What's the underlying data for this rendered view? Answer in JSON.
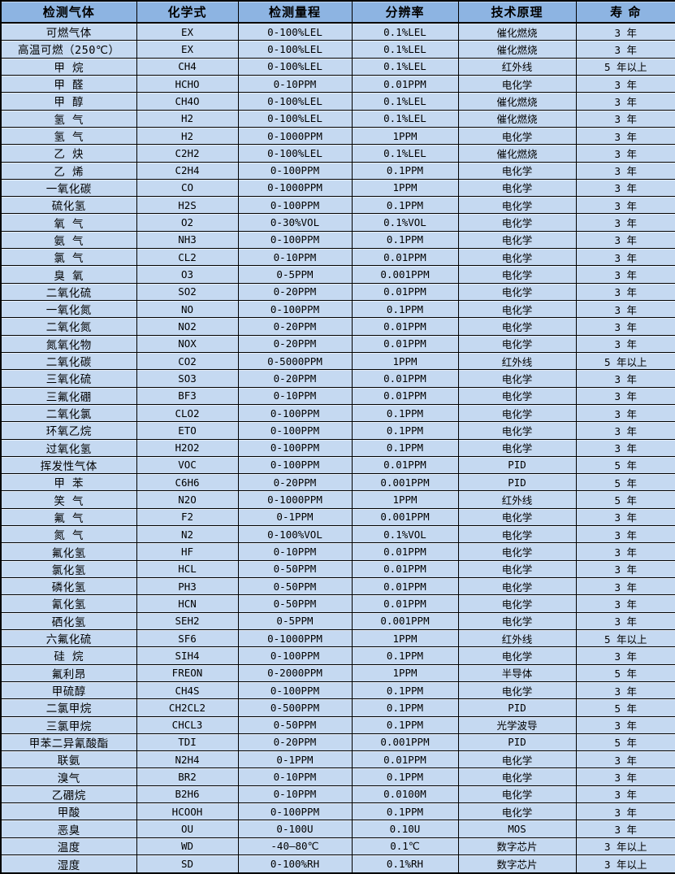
{
  "colors": {
    "header_bg": "#8DB4E2",
    "row_bg": "#C5D9F1",
    "border": "#000000",
    "text": "#000000"
  },
  "table": {
    "columns": [
      "检测气体",
      "化学式",
      "检测量程",
      "分辨率",
      "技术原理",
      "寿 命"
    ],
    "rows": [
      [
        "可燃气体",
        "EX",
        "0-100%LEL",
        "0.1%LEL",
        "催化燃烧",
        "3 年"
      ],
      [
        "高温可燃（250℃）",
        "EX",
        "0-100%LEL",
        "0.1%LEL",
        "催化燃烧",
        "3 年"
      ],
      [
        "甲 烷",
        "CH4",
        "0-100%LEL",
        "0.1%LEL",
        "红外线",
        "5 年以上"
      ],
      [
        "甲 醛",
        "HCHO",
        "0-10PPM",
        "0.01PPM",
        "电化学",
        "3 年"
      ],
      [
        "甲 醇",
        "CH4O",
        "0-100%LEL",
        "0.1%LEL",
        "催化燃烧",
        "3 年"
      ],
      [
        "氢 气",
        "H2",
        "0-100%LEL",
        "0.1%LEL",
        "催化燃烧",
        "3 年"
      ],
      [
        "氢 气",
        "H2",
        "0-1000PPM",
        "1PPM",
        "电化学",
        "3 年"
      ],
      [
        "乙 炔",
        "C2H2",
        "0-100%LEL",
        "0.1%LEL",
        "催化燃烧",
        "3 年"
      ],
      [
        "乙 烯",
        "C2H4",
        "0-100PPM",
        "0.1PPM",
        "电化学",
        "3 年"
      ],
      [
        "一氧化碳",
        "CO",
        "0-1000PPM",
        "1PPM",
        "电化学",
        "3 年"
      ],
      [
        "硫化氢",
        "H2S",
        "0-100PPM",
        "0.1PPM",
        "电化学",
        "3 年"
      ],
      [
        "氧 气",
        "O2",
        "0-30%VOL",
        "0.1%VOL",
        "电化学",
        "3 年"
      ],
      [
        "氨 气",
        "NH3",
        "0-100PPM",
        "0.1PPM",
        "电化学",
        "3 年"
      ],
      [
        "氯 气",
        "CL2",
        "0-10PPM",
        "0.01PPM",
        "电化学",
        "3 年"
      ],
      [
        "臭 氧",
        "O3",
        "0-5PPM",
        "0.001PPM",
        "电化学",
        "3 年"
      ],
      [
        "二氧化硫",
        "SO2",
        "0-20PPM",
        "0.01PPM",
        "电化学",
        "3 年"
      ],
      [
        "一氧化氮",
        "NO",
        "0-100PPM",
        "0.1PPM",
        "电化学",
        "3 年"
      ],
      [
        "二氧化氮",
        "NO2",
        "0-20PPM",
        "0.01PPM",
        "电化学",
        "3 年"
      ],
      [
        "氮氧化物",
        "NOX",
        "0-20PPM",
        "0.01PPM",
        "电化学",
        "3 年"
      ],
      [
        "二氧化碳",
        "CO2",
        "0-5000PPM",
        "1PPM",
        "红外线",
        "5 年以上"
      ],
      [
        "三氧化硫",
        "SO3",
        "0-20PPM",
        "0.01PPM",
        "电化学",
        "3 年"
      ],
      [
        "三氟化硼",
        "BF3",
        "0-10PPM",
        "0.01PPM",
        "电化学",
        "3 年"
      ],
      [
        "二氧化氯",
        "CLO2",
        "0-100PPM",
        "0.1PPM",
        "电化学",
        "3 年"
      ],
      [
        "环氧乙烷",
        "ETO",
        "0-100PPM",
        "0.1PPM",
        "电化学",
        "3 年"
      ],
      [
        "过氧化氢",
        "H2O2",
        "0-100PPM",
        "0.1PPM",
        "电化学",
        "3 年"
      ],
      [
        "挥发性气体",
        "VOC",
        "0-100PPM",
        "0.01PPM",
        "PID",
        "5 年"
      ],
      [
        "甲 苯",
        "C6H6",
        "0-20PPM",
        "0.001PPM",
        "PID",
        "5 年"
      ],
      [
        "笑 气",
        "N2O",
        "0-1000PPM",
        "1PPM",
        "红外线",
        "5 年"
      ],
      [
        "氟 气",
        "F2",
        "0-1PPM",
        "0.001PPM",
        "电化学",
        "3 年"
      ],
      [
        "氮 气",
        "N2",
        "0-100%VOL",
        "0.1%VOL",
        "电化学",
        "3 年"
      ],
      [
        "氟化氢",
        "HF",
        "0-10PPM",
        "0.01PPM",
        "电化学",
        "3 年"
      ],
      [
        "氯化氢",
        "HCL",
        "0-50PPM",
        "0.01PPM",
        "电化学",
        "3 年"
      ],
      [
        "磷化氢",
        "PH3",
        "0-50PPM",
        "0.01PPM",
        "电化学",
        "3 年"
      ],
      [
        "氰化氢",
        "HCN",
        "0-50PPM",
        "0.01PPM",
        "电化学",
        "3 年"
      ],
      [
        "硒化氢",
        "SEH2",
        "0-5PPM",
        "0.001PPM",
        "电化学",
        "3 年"
      ],
      [
        "六氟化硫",
        "SF6",
        "0-1000PPM",
        "1PPM",
        "红外线",
        "5 年以上"
      ],
      [
        "硅 烷",
        "SIH4",
        "0-100PPM",
        "0.1PPM",
        "电化学",
        "3 年"
      ],
      [
        "氟利昂",
        "FREON",
        "0-2000PPM",
        "1PPM",
        "半导体",
        "5 年"
      ],
      [
        "甲硫醇",
        "CH4S",
        "0-100PPM",
        "0.1PPM",
        "电化学",
        "3 年"
      ],
      [
        "二氯甲烷",
        "CH2CL2",
        "0-500PPM",
        "0.1PPM",
        "PID",
        "5 年"
      ],
      [
        "三氯甲烷",
        "CHCL3",
        "0-50PPM",
        "0.1PPM",
        "光学波导",
        "3 年"
      ],
      [
        "甲苯二异氰酸酯",
        "TDI",
        "0-20PPM",
        "0.001PPM",
        "PID",
        "5 年"
      ],
      [
        "联氨",
        "N2H4",
        "0-1PPM",
        "0.01PPM",
        "电化学",
        "3 年"
      ],
      [
        "溴气",
        "BR2",
        "0-10PPM",
        "0.1PPM",
        "电化学",
        "3 年"
      ],
      [
        "乙硼烷",
        "B2H6",
        "0-10PPM",
        "0.0100M",
        "电化学",
        "3 年"
      ],
      [
        "甲酸",
        "HCOOH",
        "0-100PPM",
        "0.1PPM",
        "电化学",
        "3 年"
      ],
      [
        "恶臭",
        "OU",
        "0-100U",
        "0.10U",
        "MOS",
        "3 年"
      ],
      [
        "温度",
        "WD",
        "-40—80℃",
        "0.1℃",
        "数字芯片",
        "3 年以上"
      ],
      [
        "湿度",
        "SD",
        "0-100%RH",
        "0.1%RH",
        "数字芯片",
        "3 年以上"
      ]
    ]
  }
}
